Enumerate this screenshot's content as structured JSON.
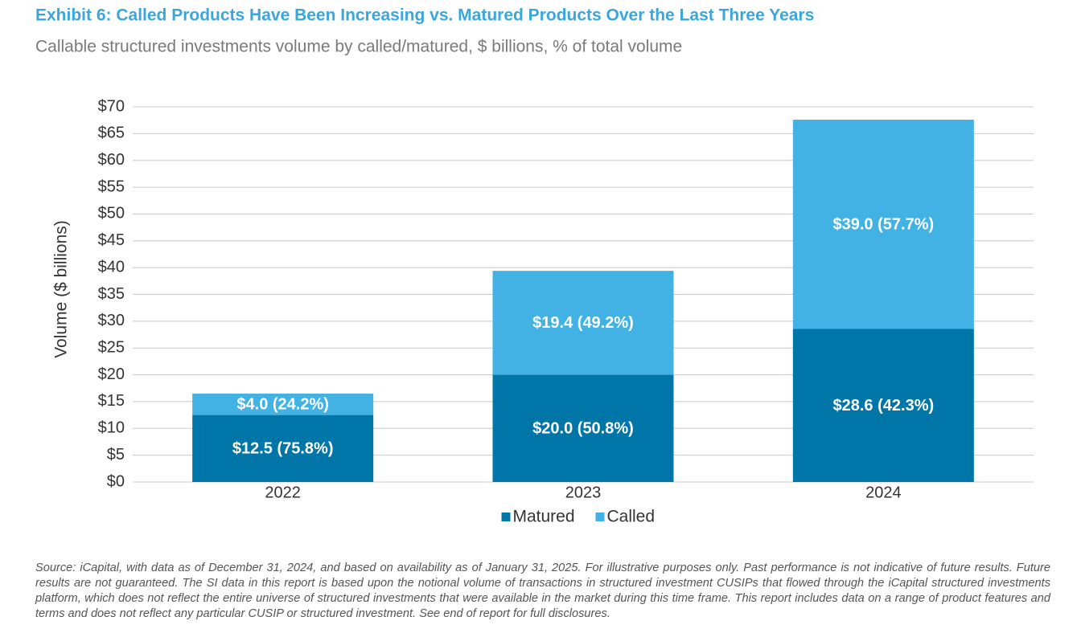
{
  "chart_data": {
    "type": "stacked_bar",
    "title": "Exhibit 6: Called Products Have Been Increasing vs. Matured Products Over the Last Three Years",
    "subtitle": "Callable structured investments volume by called/matured, $ billions, % of total volume",
    "y_axis_label": "Volume ($ billions)",
    "categories": [
      "2022",
      "2023",
      "2024"
    ],
    "series": [
      {
        "name": "Matured",
        "color": "#0075a8",
        "values": [
          12.5,
          20.0,
          28.6
        ],
        "value_labels": [
          "$12.5 (75.8%)",
          "$20.0 (50.8%)",
          "$28.6 (42.3%)"
        ]
      },
      {
        "name": "Called",
        "color": "#42b2e5",
        "values": [
          4.0,
          19.4,
          39.0
        ],
        "value_labels": [
          "$4.0 (24.2%)",
          "$19.4 (49.2%)",
          "$39.0 (57.7%)"
        ]
      }
    ],
    "ylim": [
      0,
      70
    ],
    "yticks": [
      {
        "value": 0,
        "label": "$0"
      },
      {
        "value": 5,
        "label": "$5"
      },
      {
        "value": 10,
        "label": "$10"
      },
      {
        "value": 15,
        "label": "$15"
      },
      {
        "value": 20,
        "label": "$20"
      },
      {
        "value": 25,
        "label": "$25"
      },
      {
        "value": 30,
        "label": "$30"
      },
      {
        "value": 35,
        "label": "$35"
      },
      {
        "value": 40,
        "label": "$40"
      },
      {
        "value": 45,
        "label": "$45"
      },
      {
        "value": 50,
        "label": "$50"
      },
      {
        "value": 55,
        "label": "$55"
      },
      {
        "value": 60,
        "label": "$60"
      },
      {
        "value": 65,
        "label": "$65"
      },
      {
        "value": 70,
        "label": "$70"
      }
    ],
    "grid": true,
    "legend_position": "bottom",
    "source": "Source: iCapital, with data as of December 31, 2024, and based on availability as of January 31, 2025. For illustrative purposes only. Past performance is not indicative of future results. Future results are not guaranteed. The SI data in this report is based upon the notional volume of transactions in structured investment CUSIPs that flowed through the iCapital structured investments platform, which does not reflect the entire universe of structured investments that were available in the market during this time frame. This report includes data on a range of product features and terms and does not reflect any particular CUSIP or structured investment. See end of report for full disclosures."
  }
}
